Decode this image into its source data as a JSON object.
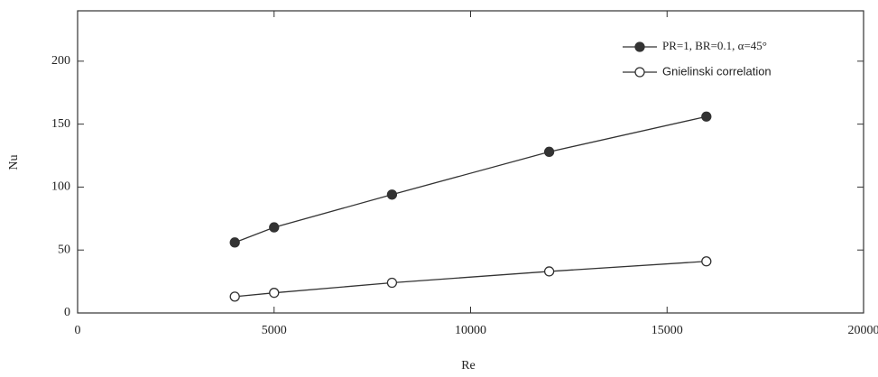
{
  "chart_data": {
    "type": "line",
    "xlabel": "Re",
    "ylabel": "Nu",
    "xlim": [
      0,
      20000
    ],
    "xticks": [
      0,
      5000,
      10000,
      15000,
      20000
    ],
    "ylim": [
      0,
      240
    ],
    "yticks": [
      0,
      50,
      100,
      150,
      200
    ],
    "legend": "upper right",
    "series": [
      {
        "name": "PR=1, BR=0.1, α=45°",
        "color": "#333333",
        "marker_fill": "#333333",
        "x": [
          4000,
          5000,
          8000,
          12000,
          16000
        ],
        "values": [
          56,
          68,
          94,
          128,
          156
        ]
      },
      {
        "name": "Gnielinski correlation",
        "color": "#333333",
        "marker_fill": "#ffffff",
        "x": [
          4000,
          5000,
          8000,
          12000,
          16000
        ],
        "values": [
          13,
          16,
          24,
          33,
          41
        ]
      }
    ]
  }
}
